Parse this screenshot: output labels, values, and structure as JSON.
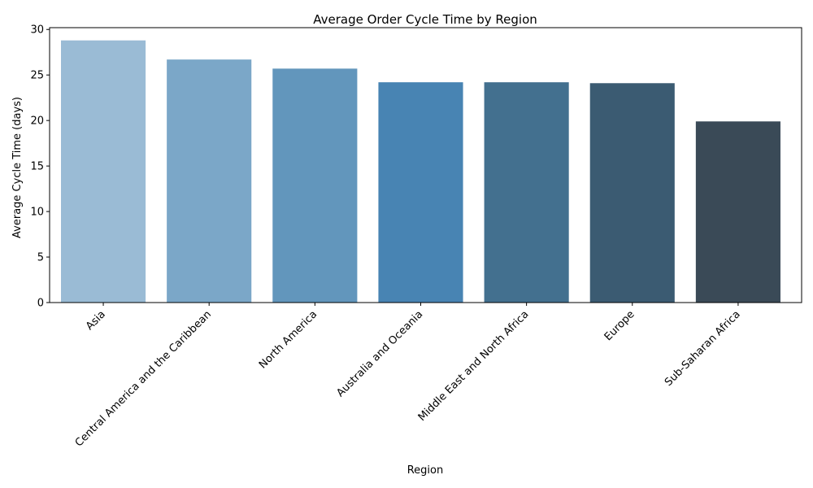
{
  "chart_data": {
    "type": "bar",
    "title": "Average Order Cycle Time by Region",
    "xlabel": "Region",
    "ylabel": "Average Cycle Time (days)",
    "categories": [
      "Asia",
      "Central America and the Caribbean",
      "North America",
      "Australia and Oceania",
      "Middle East and North Africa",
      "Europe",
      "Sub-Saharan Africa"
    ],
    "values": [
      28.8,
      26.7,
      25.7,
      24.2,
      24.2,
      24.1,
      19.9
    ],
    "colors": [
      "#9abbd5",
      "#7ba7c8",
      "#6296bc",
      "#4884b3",
      "#43708f",
      "#3b5b72",
      "#3a4a57"
    ],
    "ylim": [
      0,
      30.2
    ],
    "yticks": [
      0,
      5,
      10,
      15,
      20,
      25,
      30
    ],
    "grid": false,
    "legend": "none"
  }
}
